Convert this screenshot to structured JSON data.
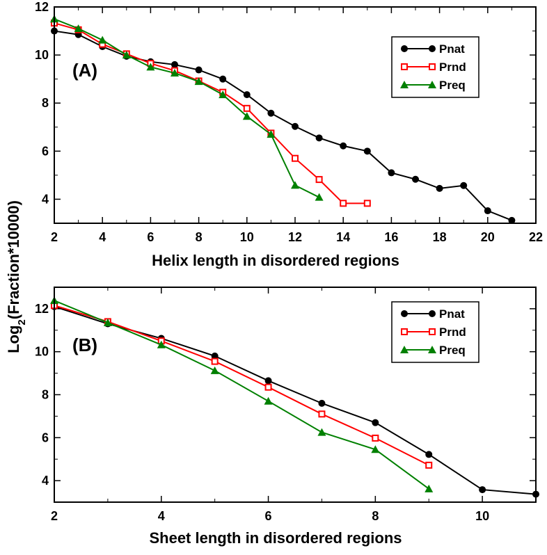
{
  "figure": {
    "ylabel_prefix": "Log",
    "ylabel_subscript": "2",
    "ylabel_suffix": "(Fraction*10000)"
  },
  "chart_data": [
    {
      "type": "line",
      "panel_label": "(A)",
      "xlabel": "Helix length in disordered regions",
      "xlim": [
        2,
        22
      ],
      "ylim": [
        3,
        12
      ],
      "xticks": [
        2,
        4,
        6,
        8,
        10,
        12,
        14,
        16,
        18,
        20,
        22
      ],
      "yticks": [
        4,
        6,
        8,
        10,
        12
      ],
      "legend_position": "top-right",
      "series": [
        {
          "name": "Pnat",
          "marker": "circle",
          "color": "#000000",
          "x": [
            2,
            3,
            4,
            5,
            6,
            7,
            8,
            9,
            10,
            11,
            12,
            13,
            14,
            15,
            16,
            17,
            18,
            19,
            20,
            21
          ],
          "y": [
            11.0,
            10.85,
            10.35,
            9.95,
            9.72,
            9.6,
            9.38,
            9.0,
            8.35,
            7.58,
            7.03,
            6.55,
            6.22,
            6.0,
            5.1,
            4.83,
            4.45,
            4.57,
            3.52,
            3.12
          ]
        },
        {
          "name": "Prnd",
          "marker": "square-open",
          "color": "#ff0000",
          "x": [
            2,
            3,
            4,
            5,
            6,
            7,
            8,
            9,
            10,
            11,
            12,
            13,
            14,
            15
          ],
          "y": [
            11.33,
            11.05,
            10.45,
            10.05,
            9.65,
            9.35,
            8.92,
            8.45,
            7.78,
            6.75,
            5.7,
            4.82,
            3.83,
            3.83
          ]
        },
        {
          "name": "Preq",
          "marker": "triangle",
          "color": "#008000",
          "x": [
            2,
            3,
            4,
            5,
            6,
            7,
            8,
            9,
            10,
            11,
            12,
            13
          ],
          "y": [
            11.5,
            11.1,
            10.62,
            10.0,
            9.5,
            9.25,
            8.9,
            8.35,
            7.45,
            6.7,
            4.58,
            4.08
          ]
        }
      ]
    },
    {
      "type": "line",
      "panel_label": "(B)",
      "xlabel": "Sheet length in disordered regions",
      "xlim": [
        2,
        11
      ],
      "ylim": [
        3,
        13
      ],
      "xticks": [
        2,
        4,
        6,
        8,
        10
      ],
      "yticks": [
        4,
        6,
        8,
        10,
        12
      ],
      "legend_position": "top-right",
      "series": [
        {
          "name": "Pnat",
          "marker": "circle",
          "color": "#000000",
          "x": [
            2,
            3,
            4,
            5,
            6,
            7,
            8,
            9,
            10,
            11
          ],
          "y": [
            12.1,
            11.3,
            10.62,
            9.8,
            8.65,
            7.6,
            6.7,
            5.22,
            3.58,
            3.37
          ]
        },
        {
          "name": "Prnd",
          "marker": "square-open",
          "color": "#ff0000",
          "x": [
            2,
            3,
            4,
            5,
            6,
            7,
            8,
            9
          ],
          "y": [
            12.15,
            11.4,
            10.5,
            9.55,
            8.35,
            7.1,
            5.98,
            4.72
          ]
        },
        {
          "name": "Preq",
          "marker": "triangle",
          "color": "#008000",
          "x": [
            2,
            3,
            4,
            5,
            6,
            7,
            8,
            9
          ],
          "y": [
            12.38,
            11.35,
            10.32,
            9.12,
            7.7,
            6.25,
            5.45,
            3.62
          ]
        }
      ]
    }
  ]
}
